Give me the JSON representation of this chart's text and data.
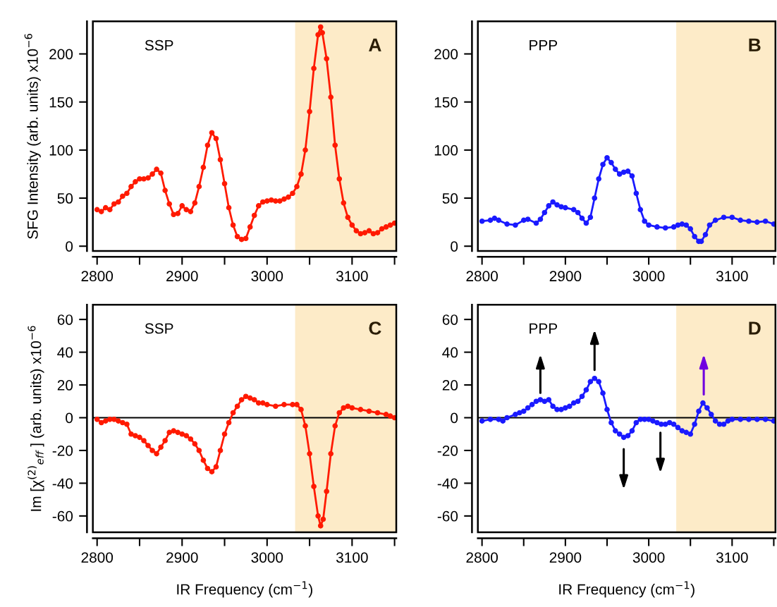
{
  "chart_data": [
    {
      "type": "line",
      "ylabel": "SFG Intensity (arb. units) x10$^{−6}$",
      "annotations": [
        "SSP",
        "A"
      ],
      "marker": "circle",
      "grid": false,
      "legend": false,
      "xlim": [
        2795,
        3152
      ],
      "xticks": [
        2800,
        {
          "value": 2850,
          "label": null
        },
        2900,
        {
          "value": 2950,
          "label": null
        },
        3000,
        {
          "value": 3050,
          "label": null
        },
        3100,
        {
          "value": 3150,
          "label": null
        }
      ],
      "ylim": [
        -5,
        234
      ],
      "yticks": [
        0,
        50,
        100,
        150,
        200
      ],
      "bands": [
        {
          "axis": "x",
          "from": 3033,
          "to": 3152,
          "color": "#fdebc8"
        }
      ],
      "series": [
        {
          "color": "#ff1a00",
          "x": [
            2800,
            2805,
            2810,
            2815,
            2820,
            2825,
            2830,
            2835,
            2840,
            2845,
            2850,
            2855,
            2860,
            2865,
            2870,
            2875,
            2880,
            2885,
            2890,
            2895,
            2900,
            2905,
            2910,
            2915,
            2920,
            2925,
            2930,
            2935,
            2940,
            2945,
            2950,
            2955,
            2960,
            2965,
            2970,
            2975,
            2980,
            2985,
            2990,
            2995,
            3000,
            3005,
            3010,
            3015,
            3020,
            3025,
            3030,
            3035,
            3040,
            3045,
            3050,
            3055,
            3060,
            3063,
            3065,
            3070,
            3075,
            3080,
            3085,
            3090,
            3095,
            3100,
            3105,
            3110,
            3115,
            3120,
            3125,
            3130,
            3135,
            3140,
            3145,
            3150
          ],
          "values": [
            38,
            36,
            40,
            38,
            44,
            46,
            52,
            55,
            62,
            67,
            70,
            70,
            71,
            75,
            80,
            76,
            58,
            44,
            33,
            34,
            42,
            38,
            36,
            45,
            62,
            82,
            105,
            118,
            112,
            90,
            65,
            40,
            22,
            10,
            7,
            8,
            20,
            32,
            42,
            46,
            47,
            48,
            47,
            47,
            49,
            51,
            55,
            62,
            75,
            100,
            140,
            185,
            220,
            228,
            222,
            195,
            155,
            105,
            70,
            45,
            30,
            22,
            16,
            13,
            14,
            16,
            13,
            14,
            18,
            20,
            22,
            24
          ]
        }
      ]
    },
    {
      "type": "line",
      "annotations": [
        "PPP",
        "B"
      ],
      "marker": "circle",
      "grid": false,
      "legend": false,
      "xlim": [
        2795,
        3152
      ],
      "xticks": [
        2800,
        {
          "value": 2850,
          "label": null
        },
        2900,
        {
          "value": 2950,
          "label": null
        },
        3000,
        {
          "value": 3050,
          "label": null
        },
        3100,
        {
          "value": 3150,
          "label": null
        }
      ],
      "ylim": [
        -5,
        234
      ],
      "yticks": [
        0,
        50,
        100,
        150,
        200
      ],
      "bands": [
        {
          "axis": "x",
          "from": 3033,
          "to": 3152,
          "color": "#fdebc8"
        }
      ],
      "series": [
        {
          "color": "#1a1aff",
          "x": [
            2800,
            2810,
            2815,
            2820,
            2830,
            2840,
            2850,
            2855,
            2865,
            2870,
            2875,
            2880,
            2885,
            2890,
            2895,
            2900,
            2910,
            2915,
            2920,
            2925,
            2930,
            2935,
            2940,
            2945,
            2950,
            2955,
            2960,
            2965,
            2970,
            2975,
            2980,
            2985,
            2990,
            2995,
            3000,
            3010,
            3020,
            3030,
            3035,
            3040,
            3045,
            3050,
            3055,
            3060,
            3063,
            3068,
            3073,
            3080,
            3090,
            3100,
            3110,
            3120,
            3130,
            3140,
            3150
          ],
          "values": [
            26,
            27,
            29,
            27,
            23,
            22,
            27,
            28,
            24,
            28,
            35,
            42,
            46,
            43,
            41,
            40,
            38,
            35,
            29,
            24,
            30,
            50,
            70,
            85,
            92,
            87,
            80,
            75,
            77,
            78,
            73,
            55,
            38,
            26,
            22,
            20,
            19,
            20,
            22,
            23,
            22,
            18,
            10,
            5,
            5,
            12,
            22,
            27,
            30,
            30,
            27,
            26,
            25,
            26,
            23
          ]
        }
      ]
    },
    {
      "type": "line",
      "ylabel": "Im [χ$^{(2)}$$_{eff}$ ] (arb. units) x10$^{−6}$",
      "xlabel": "IR Frequency (cm$^{−1}$)",
      "annotations": [
        "SSP",
        "C"
      ],
      "marker": "circle",
      "grid": false,
      "legend": false,
      "xlim": [
        2795,
        3152
      ],
      "xticks": [
        2800,
        {
          "value": 2850,
          "label": null
        },
        2900,
        {
          "value": 2950,
          "label": null
        },
        3000,
        {
          "value": 3050,
          "label": null
        },
        3100,
        {
          "value": 3150,
          "label": null
        }
      ],
      "ylim": [
        -70,
        69
      ],
      "yticks": [
        -60,
        -40,
        -20,
        0,
        20,
        40,
        60
      ],
      "bands": [
        {
          "axis": "x",
          "from": 3033,
          "to": 3152,
          "color": "#fdebc8"
        }
      ],
      "ref_lines": [
        {
          "axis": "y",
          "value": 0,
          "color": "#000000"
        }
      ],
      "series": [
        {
          "color": "#ff1a00",
          "x": [
            2800,
            2805,
            2810,
            2815,
            2820,
            2825,
            2830,
            2835,
            2840,
            2845,
            2850,
            2855,
            2860,
            2865,
            2870,
            2875,
            2880,
            2885,
            2890,
            2895,
            2900,
            2905,
            2910,
            2915,
            2920,
            2925,
            2930,
            2935,
            2940,
            2945,
            2950,
            2955,
            2960,
            2965,
            2970,
            2975,
            2980,
            2985,
            2990,
            2995,
            3000,
            3010,
            3020,
            3030,
            3035,
            3040,
            3045,
            3050,
            3055,
            3060,
            3063,
            3066,
            3070,
            3075,
            3080,
            3085,
            3090,
            3095,
            3100,
            3110,
            3120,
            3130,
            3140,
            3145,
            3150
          ],
          "values": [
            -1,
            -3,
            -2,
            -1,
            -1,
            -2,
            -3,
            -4,
            -10,
            -11,
            -12,
            -14,
            -17,
            -20,
            -22,
            -18,
            -14,
            -9,
            -8,
            -9,
            -10,
            -11,
            -13,
            -16,
            -20,
            -26,
            -31,
            -33,
            -30,
            -20,
            -10,
            -3,
            3,
            7,
            11,
            13,
            12,
            11,
            9,
            9,
            8,
            7,
            8,
            8,
            8,
            5,
            -5,
            -22,
            -42,
            -60,
            -66,
            -62,
            -45,
            -22,
            -5,
            3,
            6,
            7,
            6,
            5,
            4,
            3,
            2,
            1,
            0
          ]
        }
      ]
    },
    {
      "type": "line",
      "xlabel": "IR Frequency (cm$^{−1}$)",
      "annotations": [
        "PPP",
        "D"
      ],
      "marker": "circle",
      "grid": false,
      "legend": false,
      "xlim": [
        2795,
        3152
      ],
      "xticks": [
        2800,
        {
          "value": 2850,
          "label": null
        },
        2900,
        {
          "value": 2950,
          "label": null
        },
        3000,
        {
          "value": 3050,
          "label": null
        },
        3100,
        {
          "value": 3150,
          "label": null
        }
      ],
      "ylim": [
        -70,
        69
      ],
      "yticks": [
        -60,
        -40,
        -20,
        0,
        20,
        40,
        60
      ],
      "bands": [
        {
          "axis": "x",
          "from": 3033,
          "to": 3152,
          "color": "#fdebc8"
        }
      ],
      "ref_lines": [
        {
          "axis": "y",
          "value": 0,
          "color": "#000000"
        }
      ],
      "series": [
        {
          "color": "#1a1aff",
          "x": [
            2800,
            2810,
            2820,
            2825,
            2830,
            2840,
            2845,
            2850,
            2855,
            2860,
            2865,
            2870,
            2875,
            2880,
            2885,
            2890,
            2895,
            2900,
            2905,
            2910,
            2915,
            2920,
            2925,
            2930,
            2935,
            2940,
            2945,
            2950,
            2955,
            2960,
            2965,
            2970,
            2975,
            2980,
            2985,
            2990,
            2995,
            3000,
            3005,
            3010,
            3015,
            3020,
            3025,
            3030,
            3035,
            3040,
            3045,
            3050,
            3055,
            3060,
            3065,
            3070,
            3075,
            3080,
            3085,
            3090,
            3095,
            3100,
            3110,
            3120,
            3130,
            3140,
            3150
          ],
          "values": [
            -2,
            -1,
            -1,
            -2,
            0,
            2,
            3,
            4,
            6,
            8,
            10,
            11,
            10,
            11,
            7,
            5,
            5,
            6,
            7,
            9,
            10,
            13,
            17,
            22,
            24,
            22,
            15,
            5,
            -3,
            -8,
            -10,
            -12,
            -11,
            -8,
            -3,
            -1,
            -1,
            -1,
            -2,
            -3,
            -4,
            -4,
            -3,
            -4,
            -6,
            -8,
            -9,
            -10,
            -4,
            4,
            9,
            6,
            2,
            -2,
            -4,
            -4,
            -2,
            -1,
            -1,
            -1,
            -1,
            -1,
            -2
          ]
        }
      ]
    }
  ]
}
